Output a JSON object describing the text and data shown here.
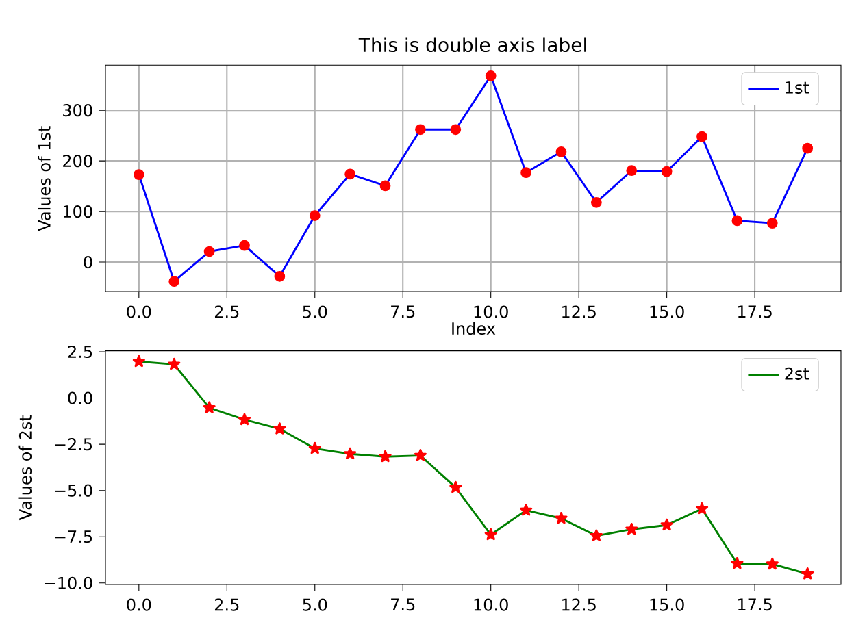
{
  "chart_data": [
    {
      "type": "line",
      "title": "This is double axis label",
      "xlabel": "Index",
      "ylabel": "Values of 1st",
      "x": [
        0,
        1,
        2,
        3,
        4,
        5,
        6,
        7,
        8,
        9,
        10,
        11,
        12,
        13,
        14,
        15,
        16,
        17,
        18,
        19
      ],
      "series": [
        {
          "name": "1st",
          "color": "#0000ff",
          "values": [
            173,
            -38,
            21,
            33,
            -28,
            92,
            174,
            151,
            262,
            262,
            368,
            177,
            218,
            118,
            181,
            179,
            248,
            82,
            77,
            225
          ]
        }
      ],
      "xlim": [
        -0.95,
        19.95
      ],
      "ylim": [
        -58,
        389
      ],
      "xticks": [
        {
          "value": 0,
          "label": "0.0"
        },
        {
          "value": 2.5,
          "label": "2.5"
        },
        {
          "value": 5,
          "label": "5.0"
        },
        {
          "value": 7.5,
          "label": "7.5"
        },
        {
          "value": 10,
          "label": "10.0"
        },
        {
          "value": 12.5,
          "label": "12.5"
        },
        {
          "value": 15,
          "label": "15.0"
        },
        {
          "value": 17.5,
          "label": "17.5"
        }
      ],
      "yticks": [
        0,
        100,
        200,
        300
      ],
      "grid": true,
      "legend": "top right",
      "marker": "circle",
      "line_style": "solid"
    },
    {
      "type": "line",
      "ylabel": "Values of 2st",
      "x": [
        0,
        1,
        2,
        3,
        4,
        5,
        6,
        7,
        8,
        9,
        10,
        11,
        12,
        13,
        14,
        15,
        16,
        17,
        18,
        19
      ],
      "series": [
        {
          "name": "2st",
          "color": "#008000",
          "values": [
            1.97,
            1.82,
            -0.53,
            -1.17,
            -1.67,
            -2.73,
            -3.02,
            -3.17,
            -3.11,
            -4.84,
            -7.39,
            -6.07,
            -6.51,
            -7.45,
            -7.1,
            -6.87,
            -5.99,
            -8.95,
            -8.98,
            -9.51
          ]
        }
      ],
      "xlim": [
        -0.95,
        19.95
      ],
      "ylim": [
        -10.08,
        2.55
      ],
      "xticks": [
        {
          "value": 0,
          "label": "0.0"
        },
        {
          "value": 2.5,
          "label": "2.5"
        },
        {
          "value": 5,
          "label": "5.0"
        },
        {
          "value": 7.5,
          "label": "7.5"
        },
        {
          "value": 10,
          "label": "10.0"
        },
        {
          "value": 12.5,
          "label": "12.5"
        },
        {
          "value": 15,
          "label": "15.0"
        },
        {
          "value": 17.5,
          "label": "17.5"
        }
      ],
      "yticks": [
        {
          "value": 2.5,
          "label": "2.5"
        },
        {
          "value": 0,
          "label": "0.0"
        },
        {
          "value": -2.5,
          "label": "−2.5"
        },
        {
          "value": -5,
          "label": "−5.0"
        },
        {
          "value": -7.5,
          "label": "−7.5"
        },
        {
          "value": -10,
          "label": "−10.0"
        }
      ],
      "legend": "top right",
      "marker": "star",
      "line_style": "solid"
    }
  ]
}
